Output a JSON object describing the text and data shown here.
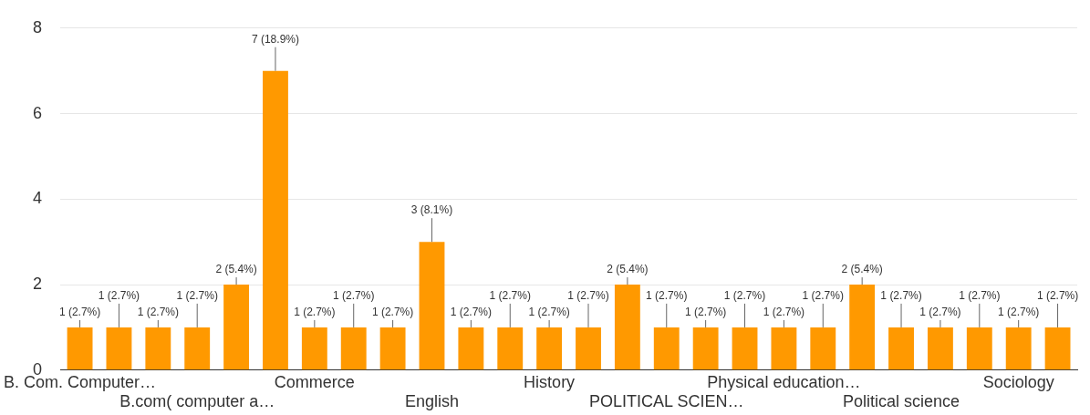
{
  "chart_data": {
    "type": "bar",
    "categories": [
      "B. Com. Computer…",
      null,
      null,
      "B.com( computer a…",
      null,
      null,
      "Commerce",
      null,
      null,
      "English",
      null,
      null,
      "History",
      null,
      null,
      "POLITICAL SCIEN…",
      null,
      null,
      "Physical education…",
      null,
      null,
      "Political science",
      null,
      null,
      "Sociology",
      null
    ],
    "values": [
      1,
      1,
      1,
      1,
      2,
      7,
      1,
      1,
      1,
      3,
      1,
      1,
      1,
      1,
      2,
      1,
      1,
      1,
      1,
      1,
      2,
      1,
      1,
      1,
      1,
      1
    ],
    "value_labels": [
      "1 (2.7%)",
      "1 (2.7%)",
      "1 (2.7%)",
      "1 (2.7%)",
      "2 (5.4%)",
      "7 (18.9%)",
      "1 (2.7%)",
      "1 (2.7%)",
      "1 (2.7%)",
      "3 (8.1%)",
      "1 (2.7%)",
      "1 (2.7%)",
      "1 (2.7%)",
      "1 (2.7%)",
      "2 (5.4%)",
      "1 (2.7%)",
      "1 (2.7%)",
      "1 (2.7%)",
      "1 (2.7%)",
      "1 (2.7%)",
      "2 (5.4%)",
      "1 (2.7%)",
      "1 (2.7%)",
      "1 (2.7%)",
      "1 (2.7%)",
      "1 (2.7%)"
    ],
    "color": "#ff9900",
    "ylim": [
      0,
      8
    ],
    "yticks": [
      0,
      2,
      4,
      6,
      8
    ],
    "grid": "y"
  }
}
